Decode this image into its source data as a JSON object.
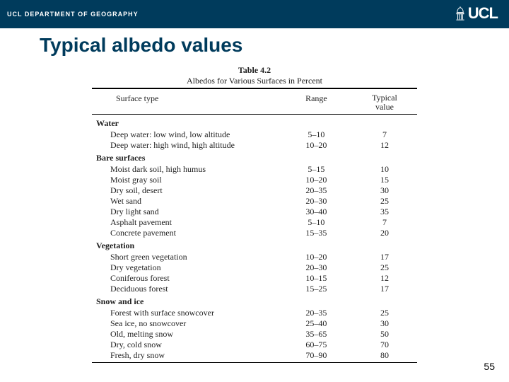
{
  "header": {
    "department": "UCL DEPARTMENT OF GEOGRAPHY",
    "logo_text": "UCL"
  },
  "slide": {
    "title": "Typical albedo values",
    "page_number": "55"
  },
  "table": {
    "number": "Table 4.2",
    "caption": "Albedos for Various Surfaces in Percent",
    "headers": {
      "c1": "Surface type",
      "c2": "Range",
      "c3_line1": "Typical",
      "c3_line2": "value"
    },
    "sections": [
      {
        "title": "Water",
        "rows": [
          {
            "label": "Deep water: low wind, low altitude",
            "range": "5–10",
            "typical": "7"
          },
          {
            "label": "Deep water: high wind, high altitude",
            "range": "10–20",
            "typical": "12"
          }
        ]
      },
      {
        "title": "Bare surfaces",
        "rows": [
          {
            "label": "Moist dark soil, high humus",
            "range": "5–15",
            "typical": "10"
          },
          {
            "label": "Moist gray soil",
            "range": "10–20",
            "typical": "15"
          },
          {
            "label": "Dry soil, desert",
            "range": "20–35",
            "typical": "30"
          },
          {
            "label": "Wet sand",
            "range": "20–30",
            "typical": "25"
          },
          {
            "label": "Dry light sand",
            "range": "30–40",
            "typical": "35"
          },
          {
            "label": "Asphalt pavement",
            "range": "5–10",
            "typical": "7"
          },
          {
            "label": "Concrete pavement",
            "range": "15–35",
            "typical": "20"
          }
        ]
      },
      {
        "title": "Vegetation",
        "rows": [
          {
            "label": "Short green vegetation",
            "range": "10–20",
            "typical": "17"
          },
          {
            "label": "Dry vegetation",
            "range": "20–30",
            "typical": "25"
          },
          {
            "label": "Coniferous forest",
            "range": "10–15",
            "typical": "12"
          },
          {
            "label": "Deciduous forest",
            "range": "15–25",
            "typical": "17"
          }
        ]
      },
      {
        "title": "Snow and ice",
        "rows": [
          {
            "label": "Forest with surface snowcover",
            "range": "20–35",
            "typical": "25"
          },
          {
            "label": "Sea ice, no snowcover",
            "range": "25–40",
            "typical": "30"
          },
          {
            "label": "Old, melting snow",
            "range": "35–65",
            "typical": "50"
          },
          {
            "label": "Dry, cold snow",
            "range": "60–75",
            "typical": "70"
          },
          {
            "label": "Fresh, dry snow",
            "range": "70–90",
            "typical": "80"
          }
        ]
      }
    ]
  }
}
